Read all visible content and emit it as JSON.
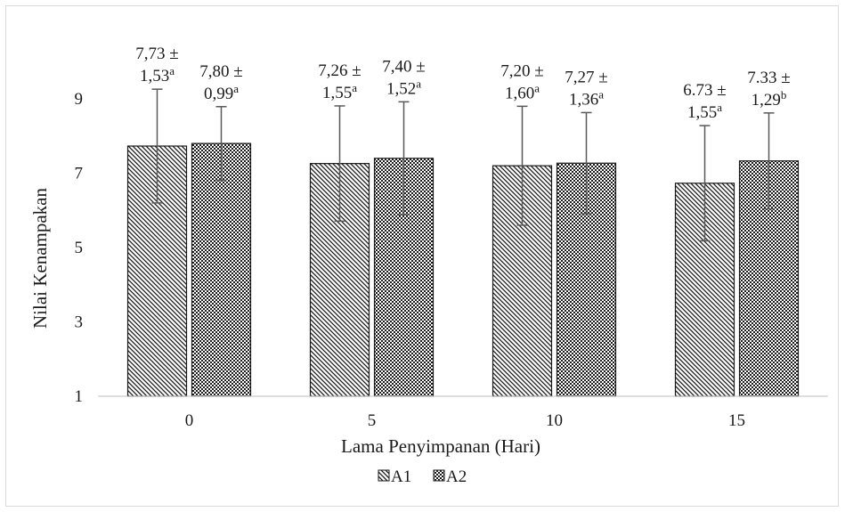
{
  "chart_data": {
    "type": "bar",
    "title": "",
    "xlabel": "Lama Penyimpanan (Hari)",
    "ylabel": "Nilai Kenampakan",
    "categories": [
      "0",
      "5",
      "10",
      "15"
    ],
    "yticks": [
      "1",
      "3",
      "5",
      "7",
      "9"
    ],
    "ylim": [
      1,
      9.85
    ],
    "grid": false,
    "legend_position": "bottom",
    "error_bars": true,
    "series": [
      {
        "name": "A1",
        "pattern": "diagonal-hatch",
        "values": [
          7.73,
          7.26,
          7.2,
          6.73
        ],
        "errors": [
          1.53,
          1.55,
          1.6,
          1.55
        ],
        "labels": [
          {
            "line1": "7,73 ±",
            "line2": "1,53",
            "sup": "a"
          },
          {
            "line1": "7,26 ±",
            "line2": "1,55",
            "sup": "a"
          },
          {
            "line1": "7,20 ±",
            "line2": "1,60",
            "sup": "a"
          },
          {
            "line1": "6.73 ±",
            "line2": "1,55",
            "sup": "a"
          }
        ]
      },
      {
        "name": "A2",
        "pattern": "dotted-grid",
        "values": [
          7.8,
          7.4,
          7.27,
          7.33
        ],
        "errors": [
          0.99,
          1.52,
          1.36,
          1.29
        ],
        "labels": [
          {
            "line1": "7,80 ±",
            "line2": "0,99",
            "sup": "a"
          },
          {
            "line1": "7,40 ±",
            "line2": "1,52",
            "sup": "a"
          },
          {
            "line1": "7,27 ±",
            "line2": "1,36",
            "sup": "a"
          },
          {
            "line1": "7.33 ±",
            "line2": "1,29",
            "sup": "b"
          }
        ]
      }
    ],
    "colors": {
      "bar_stroke": "#1a1a1a",
      "error_bar": "#595959",
      "axis_line": "#bfbfbf"
    }
  }
}
